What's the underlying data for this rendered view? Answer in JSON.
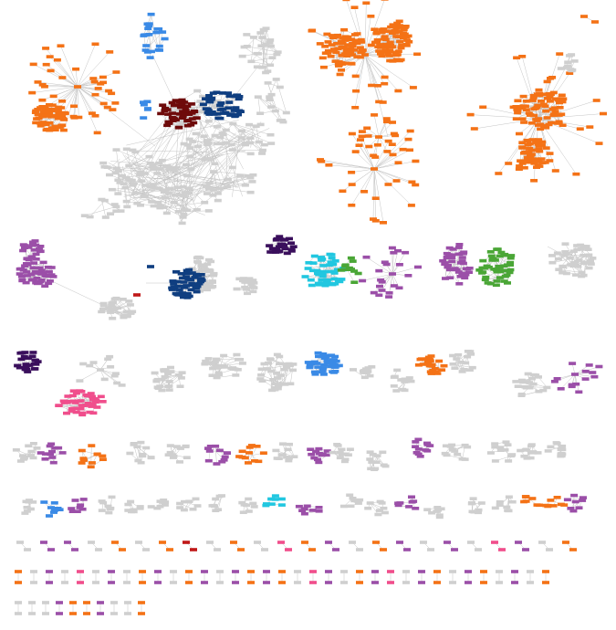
{
  "diagram": {
    "type": "network-graph",
    "text_labels": [],
    "colors": {
      "orange": "#f47216",
      "gray": "#cfcfcf",
      "edge": "#c4c4c4",
      "light_blue": "#3a8ae6",
      "dark_red": "#6e0b0b",
      "navy": "#0f3e80",
      "purple": "#9b4fa8",
      "dark_purple": "#3a0f5c",
      "cyan": "#21c7e0",
      "green": "#4aa636",
      "pink": "#f04e8c",
      "red": "#c01818"
    },
    "components": [
      {
        "id": "top-left-orange-cluster",
        "color": "orange"
      },
      {
        "id": "top-left-light-blue-cluster",
        "color": "light_blue"
      },
      {
        "id": "top-left-dark-red-cluster",
        "color": "dark_red"
      },
      {
        "id": "top-left-navy-cluster",
        "color": "navy"
      },
      {
        "id": "top-left-gray-core",
        "color": "gray"
      },
      {
        "id": "top-center-orange-network",
        "color": "orange"
      },
      {
        "id": "top-right-orange-network",
        "color": "orange"
      },
      {
        "id": "mid-left-purple-cluster",
        "color": "purple"
      },
      {
        "id": "mid-navy-cluster",
        "color": "navy"
      },
      {
        "id": "mid-dark-purple-cluster",
        "color": "dark_purple"
      },
      {
        "id": "mid-cyan-cluster",
        "color": "cyan"
      },
      {
        "id": "mid-green-cluster",
        "color": "green"
      },
      {
        "id": "mid-purple-cluster",
        "color": "purple"
      },
      {
        "id": "row3-dark-purple-cluster",
        "color": "dark_purple"
      },
      {
        "id": "row3-pink-cluster",
        "color": "pink"
      },
      {
        "id": "row3-blue-cluster",
        "color": "light_blue"
      },
      {
        "id": "row3-orange-cluster",
        "color": "orange"
      },
      {
        "id": "row3-purple-cluster",
        "color": "purple"
      },
      {
        "id": "small-components",
        "color": "gray"
      },
      {
        "id": "singleton-pairs",
        "color": "gray"
      }
    ]
  }
}
